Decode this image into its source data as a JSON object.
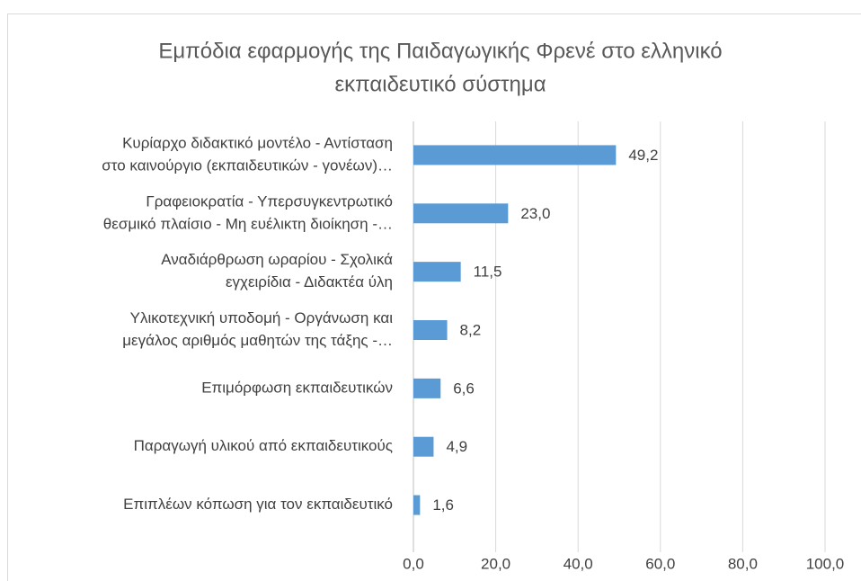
{
  "chart_data": {
    "type": "bar",
    "orientation": "horizontal",
    "title": [
      "Εμπόδια εφαρμογής της Παιδαγωγικής Φρενέ στο ελληνικό",
      "εκπαιδευτικό σύστημα"
    ],
    "categories": [
      [
        "Κυρίαρχο διδακτικό μοντέλο - Αντίσταση",
        "στο καινούργιο (εκπαιδευτικών - γονέων)…"
      ],
      [
        "Γραφειοκρατία - Υπερσυγκεντρωτικό",
        "θεσμικό πλαίσιο - Μη ευέλικτη διοίκηση -…"
      ],
      [
        "Αναδιάρθρωση ωραρίου - Σχολικά",
        "εγχειρίδια - Διδακτέα ύλη"
      ],
      [
        "Υλικοτεχνική υποδομή - Οργάνωση και",
        "μεγάλος αριθμός μαθητών της τάξης -…"
      ],
      [
        "Επιμόρφωση εκπαιδευτικών"
      ],
      [
        "Παραγωγή υλικού από εκπαιδευτικούς"
      ],
      [
        "Επιπλέων κόπωση για τον εκπαιδευτικό"
      ]
    ],
    "values": [
      49.2,
      23.0,
      11.5,
      8.2,
      6.6,
      4.9,
      1.6
    ],
    "value_labels": [
      "49,2",
      "23,0",
      "11,5",
      "8,2",
      "6,6",
      "4,9",
      "1,6"
    ],
    "color": "#5b9bd5",
    "xlim": [
      0,
      100
    ],
    "xticks": [
      {
        "value": 0,
        "label": "0,0"
      },
      {
        "value": 20,
        "label": "20,0"
      },
      {
        "value": 40,
        "label": "40,0"
      },
      {
        "value": 60,
        "label": "60,0"
      },
      {
        "value": 80,
        "label": "80,0"
      },
      {
        "value": 100,
        "label": "100,0"
      }
    ],
    "grid": true
  }
}
